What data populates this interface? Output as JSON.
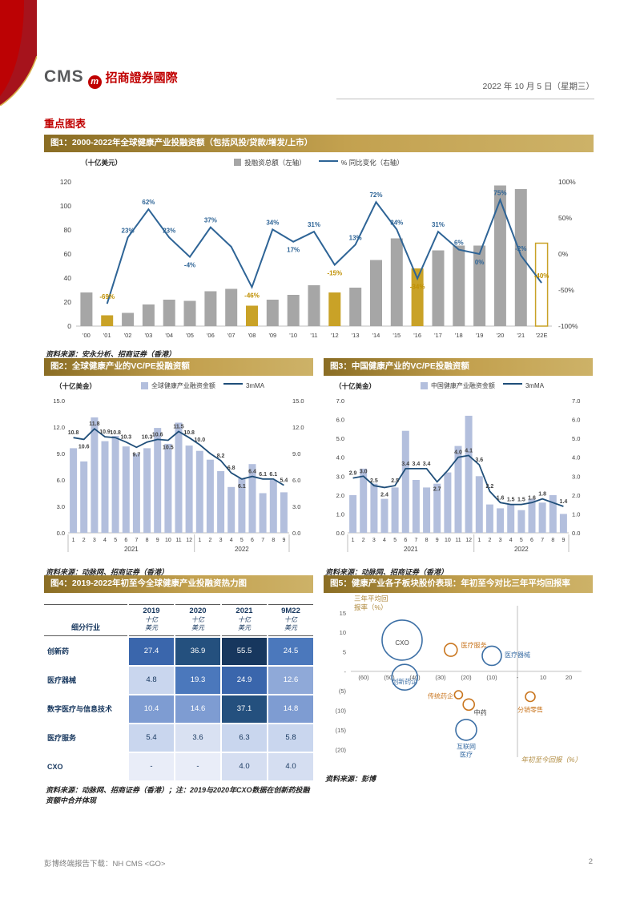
{
  "page": {
    "date": "2022 年 10 月 5 日（星期三）",
    "section_title": "重点图表",
    "footer_left": "彭博终端报告下载：NH CMS <GO>",
    "page_number": "2"
  },
  "logo": {
    "cms": "CMS",
    "m": "m",
    "cn": "招商證券國際"
  },
  "colors": {
    "bar_gray": "#A6A6A6",
    "bar_gold": "#C9A227",
    "line_blue": "#2E6496",
    "gold_label": "#BF8F00",
    "bar_light": "#B3BFDD",
    "line_navy": "#1F4E79",
    "bubble_blue": "#3C6FA5",
    "bubble_orange": "#C9761F",
    "axis_title_gold": "#B08A3E"
  },
  "chart_data": [
    {
      "id": "fig1",
      "type": "bar+line",
      "title": "图1：2000-2022年全球健康产业投融资额（包括风投/贷款/增发/上市）",
      "unit": "（十亿美元）",
      "legend": [
        "投融资总额（左轴）",
        "% 同比变化（右轴）"
      ],
      "source": "资料来源：安永分析、招商证券（香港）",
      "categories": [
        "'00",
        "'01",
        "'02",
        "'03",
        "'04",
        "'05",
        "'06",
        "'07",
        "'08",
        "'09",
        "'10",
        "'11",
        "'12",
        "'13",
        "'14",
        "'15",
        "'16",
        "'17",
        "'18",
        "'19",
        "'20",
        "'21",
        "'22E"
      ],
      "bars": [
        28,
        9,
        11,
        18,
        22,
        21,
        29,
        31,
        17,
        22,
        26,
        34,
        28,
        32,
        55,
        73,
        48,
        63,
        67,
        67,
        117,
        114,
        69
      ],
      "gold_bars": [
        1,
        8,
        12,
        16
      ],
      "outline_bars": [
        22
      ],
      "yoy": [
        null,
        -69,
        23,
        62,
        23,
        -4,
        37,
        10,
        -46,
        34,
        17,
        31,
        -15,
        13,
        72,
        34,
        -34,
        31,
        6,
        0,
        75,
        -2,
        -40
      ],
      "yoy_labels": [
        "",
        "-69%",
        "23%",
        "62%",
        "23%",
        "-4%",
        "37%",
        "",
        "-46%",
        "34%",
        "17%",
        "31%",
        "-15%",
        "13%",
        "72%",
        "34%",
        "-34%",
        "31%",
        "6%",
        "0%",
        "75%",
        "-2%",
        "-40%"
      ],
      "gold_labels": [
        1,
        8,
        12,
        16,
        22
      ],
      "left_axis": {
        "min": 0,
        "max": 120,
        "step": 20
      },
      "right_axis": {
        "min": -100,
        "max": 100,
        "ticks": [
          {
            "v": 100,
            "t": "100%"
          },
          {
            "v": 50,
            "t": "50%"
          },
          {
            "v": 0,
            "t": "0%"
          },
          {
            "v": -50,
            "t": "-50%"
          },
          {
            "v": -100,
            "t": "-100%"
          }
        ]
      }
    },
    {
      "id": "fig2",
      "type": "bar+line",
      "title": "图2：全球健康产业的VC/PE投融资额",
      "unit": "（十亿美金）",
      "legend": [
        "全球健康产业融资金额",
        "3mMA"
      ],
      "source": "资料来源：动脉网、招商证券（香港）",
      "months": [
        "1",
        "2",
        "3",
        "4",
        "5",
        "6",
        "7",
        "8",
        "9",
        "10",
        "11",
        "12",
        "1",
        "2",
        "3",
        "4",
        "5",
        "6",
        "7",
        "8",
        "9"
      ],
      "year_split": 12,
      "years": [
        "2021",
        "2022"
      ],
      "bars": [
        9.6,
        8.1,
        13.1,
        10.4,
        11.0,
        9.8,
        9.0,
        9.6,
        11.9,
        10.1,
        12.5,
        9.9,
        9.3,
        8.3,
        7.0,
        5.2,
        6.2,
        7.8,
        4.5,
        6.0,
        4.6
      ],
      "ma": [
        10.8,
        10.6,
        11.8,
        10.9,
        10.8,
        10.3,
        9.7,
        10.3,
        10.6,
        10.5,
        11.5,
        10.8,
        10.0,
        9.0,
        8.2,
        6.8,
        6.1,
        6.4,
        6.1,
        6.1,
        5.4
      ],
      "ma_labels": [
        "10.8",
        "10.6",
        "11.8",
        "10.9",
        "10.8",
        "10.3",
        "9.7",
        "10.3",
        "10.6",
        "10.5",
        "11.5",
        "10.8",
        "10.0",
        "",
        "8.2",
        "6.8",
        "6.1",
        "6.4",
        "6.1",
        "6.1",
        "5.4"
      ],
      "axis": {
        "min": 0,
        "max": 15,
        "step": 3
      }
    },
    {
      "id": "fig3",
      "type": "bar+line",
      "title": "图3：中国健康产业的VC/PE投融资额",
      "unit": "（十亿美金）",
      "legend": [
        "中国健康产业融资金额",
        "3mMA"
      ],
      "source": "资料来源：动脉网、招商证券（香港）",
      "months": [
        "1",
        "2",
        "3",
        "4",
        "5",
        "6",
        "7",
        "8",
        "9",
        "10",
        "11",
        "12",
        "1",
        "2",
        "3",
        "4",
        "5",
        "6",
        "7",
        "8",
        "9"
      ],
      "year_split": 12,
      "years": [
        "2021",
        "2022"
      ],
      "bars": [
        2.0,
        3.4,
        2.6,
        1.8,
        2.4,
        5.4,
        2.8,
        2.4,
        2.6,
        3.2,
        4.6,
        6.2,
        3.0,
        1.5,
        1.3,
        1.5,
        1.2,
        1.8,
        1.6,
        2.0,
        1.0
      ],
      "ma": [
        2.9,
        3.0,
        2.5,
        2.4,
        2.5,
        3.4,
        3.4,
        3.4,
        2.7,
        3.3,
        4.0,
        4.1,
        3.6,
        2.2,
        1.6,
        1.5,
        1.5,
        1.6,
        1.8,
        1.6,
        1.4
      ],
      "ma_labels": [
        "2.9",
        "3.0",
        "2.5",
        "2.4",
        "2.5",
        "3.4",
        "3.4",
        "3.4",
        "2.7",
        "",
        "4.0",
        "4.1",
        "3.6",
        "2.2",
        "1.6",
        "1.5",
        "1.5",
        "1.6",
        "1.8",
        "",
        "1.4"
      ],
      "axis": {
        "min": 0,
        "max": 7,
        "step": 1
      }
    },
    {
      "id": "fig4",
      "type": "heatmap",
      "title": "图4：2019-2022年初至今全球健康产业投融资热力图",
      "source": "资料来源：动脉网、招商证券（香港）；注：2019与2020年CXO数据在创新药投融资额中合并体现",
      "corner": "细分行业",
      "col_headers": [
        "2019",
        "2020",
        "2021",
        "9M22"
      ],
      "col_sub_lines": [
        "十亿",
        "美元"
      ],
      "rows": [
        {
          "label": "创新药",
          "values": [
            "27.4",
            "36.9",
            "55.5",
            "24.5"
          ],
          "colors": [
            "#3A66AC",
            "#24507E",
            "#17375E",
            "#4B78BC"
          ]
        },
        {
          "label": "医疗器械",
          "values": [
            "4.8",
            "19.3",
            "24.9",
            "12.6"
          ],
          "colors": [
            "#C9D6EE",
            "#4B78BC",
            "#3A66AC",
            "#8FA9D8"
          ]
        },
        {
          "label": "数字医疗与信息技术",
          "values": [
            "10.4",
            "14.6",
            "37.1",
            "14.8"
          ],
          "colors": [
            "#7E9CD2",
            "#7E9CD2",
            "#24507E",
            "#7E9CD2"
          ]
        },
        {
          "label": "医疗服务",
          "values": [
            "5.4",
            "3.6",
            "6.3",
            "5.8"
          ],
          "colors": [
            "#C9D6EE",
            "#D9E1F2",
            "#C9D6EE",
            "#C9D6EE"
          ]
        },
        {
          "label": "CXO",
          "values": [
            "-",
            "-",
            "4.0",
            "4.0"
          ],
          "colors": [
            "#E9EDF8",
            "#E9EDF8",
            "#D5DEF1",
            "#D5DEF1"
          ]
        }
      ]
    },
    {
      "id": "fig5",
      "type": "scatter",
      "title": "图5：健康产业各子板块股价表现：年初至今对比三年平均回报率",
      "source": "资料来源：彭博",
      "y_title_lines": [
        "三年平均回",
        "报率（%）"
      ],
      "x_title": "年初至今回报（%）",
      "xlim": [
        -65,
        25
      ],
      "ylim": [
        -22,
        16
      ],
      "x_ticks": [
        {
          "v": -60,
          "label": "(60)"
        },
        {
          "v": -50,
          "label": "(50)"
        },
        {
          "v": -40,
          "label": "(40)"
        },
        {
          "v": -30,
          "label": "(30)"
        },
        {
          "v": -20,
          "label": "(20)"
        },
        {
          "v": -10,
          "label": "(10)"
        },
        {
          "v": 0,
          "label": "-"
        },
        {
          "v": 10,
          "label": "10"
        },
        {
          "v": 20,
          "label": "20"
        }
      ],
      "y_ticks": [
        {
          "v": 15,
          "label": "15"
        },
        {
          "v": 10,
          "label": "10"
        },
        {
          "v": 5,
          "label": "5"
        },
        {
          "v": 0,
          "label": "-"
        },
        {
          "v": -5,
          "label": "(5)"
        },
        {
          "v": -10,
          "label": "(10)"
        },
        {
          "v": -15,
          "label": "(15)"
        },
        {
          "v": -20,
          "label": "(20)"
        }
      ],
      "bubbles": [
        {
          "name": "CXO",
          "x": -45,
          "y": 8,
          "r": 25,
          "c": "blue",
          "label": [
            "CXO"
          ],
          "lx": -45,
          "ly": 7.4,
          "anchor": "middle",
          "lcolor": "#404040"
        },
        {
          "name": "创新药企",
          "x": -44,
          "y": -1.5,
          "r": 16,
          "c": "blue",
          "label": [
            "创新药企"
          ],
          "lx": -44,
          "ly": -2.6,
          "anchor": "middle",
          "lcolor": "#3C6FA5"
        },
        {
          "name": "医疗服务",
          "x": -26,
          "y": 5.5,
          "r": 8,
          "c": "orange",
          "label": [
            "医疗服务"
          ],
          "lx": -22,
          "ly": 6.8,
          "anchor": "start",
          "lcolor": "#C9761F"
        },
        {
          "name": "医疗器械",
          "x": -10,
          "y": 4,
          "r": 12,
          "c": "blue",
          "label": [
            "医疗器械"
          ],
          "lx": -5,
          "ly": 4.3,
          "anchor": "start",
          "lcolor": "#3C6FA5"
        },
        {
          "name": "传统药企",
          "x": -23,
          "y": -6,
          "r": 5,
          "c": "orange",
          "label": [
            "传统药企"
          ],
          "lx": -25,
          "ly": -6.3,
          "anchor": "end",
          "lcolor": "#C9761F"
        },
        {
          "name": "中药",
          "x": -19,
          "y": -8.5,
          "r": 7,
          "c": "orange",
          "label": [
            "中药"
          ],
          "lx": -17,
          "ly": -10.5,
          "anchor": "start",
          "lcolor": "#404040"
        },
        {
          "name": "分销零售",
          "x": 5,
          "y": -6.5,
          "r": 6,
          "c": "orange",
          "label": [
            "分销零售"
          ],
          "lx": 5,
          "ly": -9.8,
          "anchor": "middle",
          "lcolor": "#C9761F"
        },
        {
          "name": "互联网医疗",
          "x": -20,
          "y": -15,
          "r": 13,
          "c": "blue",
          "label": [
            "互联网",
            "医疗"
          ],
          "lx": -20,
          "ly": -19.2,
          "anchor": "middle",
          "lcolor": "#3C6FA5"
        }
      ]
    }
  ]
}
